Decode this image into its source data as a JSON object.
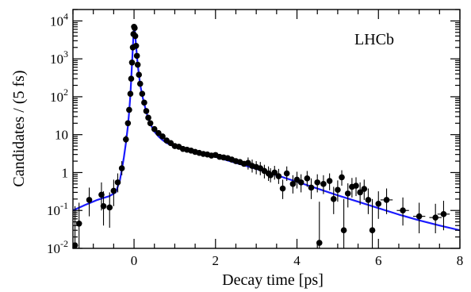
{
  "chart_data": {
    "type": "scatter",
    "xlabel": "Decay time [ps]",
    "ylabel": "Candidates / (5 fs)",
    "xlim": [
      -1.5,
      8
    ],
    "ylim": [
      0.01,
      20000
    ],
    "yscale": "log",
    "x_ticks": [
      0,
      2,
      4,
      6,
      8
    ],
    "y_ticks": [
      {
        "value": 0.01,
        "base": "10",
        "exp": "-2"
      },
      {
        "value": 0.1,
        "base": "10",
        "exp": "-1"
      },
      {
        "value": 1,
        "text": "1"
      },
      {
        "value": 10,
        "text": "10"
      },
      {
        "value": 100,
        "base": "10",
        "exp": "2"
      },
      {
        "value": 1000,
        "base": "10",
        "exp": "3"
      },
      {
        "value": 10000,
        "base": "10",
        "exp": "4"
      }
    ],
    "annotation": "LHCb",
    "grid": false,
    "colors": {
      "data": "#000000",
      "fit": "#1a1aff"
    },
    "series": [
      {
        "kind": "points",
        "points": [
          {
            "x": -1.45,
            "y": 0.012,
            "ylo": 0.01,
            "yhi": 0.13
          },
          {
            "x": -1.35,
            "y": 0.045,
            "ylo": 0.01,
            "yhi": 0.16
          },
          {
            "x": -1.1,
            "y": 0.19,
            "ylo": 0.07,
            "yhi": 0.4
          },
          {
            "x": -0.8,
            "y": 0.26,
            "ylo": 0.1,
            "yhi": 0.55
          },
          {
            "x": -0.75,
            "y": 0.13,
            "ylo": 0.04,
            "yhi": 0.32
          },
          {
            "x": -0.6,
            "y": 0.12,
            "ylo": 0.035,
            "yhi": 0.3
          },
          {
            "x": -0.5,
            "y": 0.33,
            "ylo": 0.13,
            "yhi": 0.65
          },
          {
            "x": -0.4,
            "y": 0.55,
            "ylo": 0.3,
            "yhi": 0.95
          },
          {
            "x": -0.3,
            "y": 1.3,
            "ylo": 0.85,
            "yhi": 2.0
          },
          {
            "x": -0.2,
            "y": 7.5,
            "ylo": 6.0,
            "yhi": 9.5
          },
          {
            "x": -0.15,
            "y": 20,
            "ylo": 17,
            "yhi": 24
          },
          {
            "x": -0.12,
            "y": 45,
            "ylo": 40,
            "yhi": 51
          },
          {
            "x": -0.09,
            "y": 120,
            "ylo": 111,
            "yhi": 130
          },
          {
            "x": -0.07,
            "y": 300
          },
          {
            "x": -0.05,
            "y": 800
          },
          {
            "x": -0.03,
            "y": 2000
          },
          {
            "x": -0.015,
            "y": 4500
          },
          {
            "x": 0.0,
            "y": 7000
          },
          {
            "x": 0.015,
            "y": 6500
          },
          {
            "x": 0.03,
            "y": 4000
          },
          {
            "x": 0.05,
            "y": 2200
          },
          {
            "x": 0.07,
            "y": 1200
          },
          {
            "x": 0.09,
            "y": 700
          },
          {
            "x": 0.12,
            "y": 380
          },
          {
            "x": 0.15,
            "y": 220
          },
          {
            "x": 0.2,
            "y": 120
          },
          {
            "x": 0.25,
            "y": 70
          },
          {
            "x": 0.3,
            "y": 42
          },
          {
            "x": 0.35,
            "y": 28
          },
          {
            "x": 0.4,
            "y": 20
          },
          {
            "x": 0.5,
            "y": 14
          },
          {
            "x": 0.6,
            "y": 11
          },
          {
            "x": 0.7,
            "y": 9
          },
          {
            "x": 0.8,
            "y": 7
          },
          {
            "x": 0.9,
            "y": 6
          },
          {
            "x": 1.0,
            "y": 5
          },
          {
            "x": 1.1,
            "y": 4.8
          },
          {
            "x": 1.2,
            "y": 4.2
          },
          {
            "x": 1.3,
            "y": 4.0
          },
          {
            "x": 1.4,
            "y": 3.8
          },
          {
            "x": 1.5,
            "y": 3.5
          },
          {
            "x": 1.6,
            "y": 3.3
          },
          {
            "x": 1.7,
            "y": 3.1
          },
          {
            "x": 1.8,
            "y": 3.0
          },
          {
            "x": 1.9,
            "y": 2.8
          },
          {
            "x": 2.0,
            "y": 2.9
          },
          {
            "x": 2.1,
            "y": 2.6
          },
          {
            "x": 2.2,
            "y": 2.5
          },
          {
            "x": 2.3,
            "y": 2.4
          },
          {
            "x": 2.4,
            "y": 2.2
          },
          {
            "x": 2.5,
            "y": 2.0
          },
          {
            "x": 2.6,
            "y": 1.9
          },
          {
            "x": 2.7,
            "y": 1.7
          },
          {
            "x": 2.8,
            "y": 1.8,
            "ylo": 1.2,
            "yhi": 2.5
          },
          {
            "x": 2.9,
            "y": 1.5,
            "ylo": 1.0,
            "yhi": 2.2
          },
          {
            "x": 3.0,
            "y": 1.4,
            "ylo": 0.9,
            "yhi": 2.0
          },
          {
            "x": 3.1,
            "y": 1.3,
            "ylo": 0.85,
            "yhi": 1.9
          },
          {
            "x": 3.2,
            "y": 1.1,
            "ylo": 0.7,
            "yhi": 1.6
          },
          {
            "x": 3.3,
            "y": 0.95,
            "ylo": 0.6,
            "yhi": 1.45
          },
          {
            "x": 3.35,
            "y": 0.85,
            "ylo": 0.55,
            "yhi": 1.3
          },
          {
            "x": 3.45,
            "y": 1.0,
            "ylo": 0.65,
            "yhi": 1.5
          },
          {
            "x": 3.55,
            "y": 0.8,
            "ylo": 0.5,
            "yhi": 1.25
          },
          {
            "x": 3.65,
            "y": 0.38,
            "ylo": 0.2,
            "yhi": 0.65
          },
          {
            "x": 3.75,
            "y": 0.95,
            "ylo": 0.6,
            "yhi": 1.45
          },
          {
            "x": 3.9,
            "y": 0.5,
            "ylo": 0.28,
            "yhi": 0.85
          },
          {
            "x": 4.0,
            "y": 0.65,
            "ylo": 0.38,
            "yhi": 1.05
          },
          {
            "x": 4.1,
            "y": 0.55,
            "ylo": 0.3,
            "yhi": 0.9
          },
          {
            "x": 4.25,
            "y": 0.7,
            "ylo": 0.42,
            "yhi": 1.1
          },
          {
            "x": 4.35,
            "y": 0.4,
            "ylo": 0.2,
            "yhi": 0.7
          },
          {
            "x": 4.5,
            "y": 0.55,
            "ylo": 0.3,
            "yhi": 0.9
          },
          {
            "x": 4.55,
            "y": 0.014,
            "ylo": 0.01,
            "yhi": 0.17
          },
          {
            "x": 4.65,
            "y": 0.5,
            "ylo": 0.27,
            "yhi": 0.85
          },
          {
            "x": 4.8,
            "y": 0.6,
            "ylo": 0.34,
            "yhi": 0.95
          },
          {
            "x": 4.9,
            "y": 0.2,
            "ylo": 0.08,
            "yhi": 0.42
          },
          {
            "x": 5.0,
            "y": 0.35,
            "ylo": 0.17,
            "yhi": 0.62
          },
          {
            "x": 5.1,
            "y": 0.75,
            "ylo": 0.45,
            "yhi": 1.15
          },
          {
            "x": 5.15,
            "y": 0.03,
            "ylo": 0.01,
            "yhi": 0.2
          },
          {
            "x": 5.25,
            "y": 0.28,
            "ylo": 0.12,
            "yhi": 0.52
          },
          {
            "x": 5.35,
            "y": 0.42,
            "ylo": 0.22,
            "yhi": 0.72
          },
          {
            "x": 5.45,
            "y": 0.45,
            "ylo": 0.24,
            "yhi": 0.75
          },
          {
            "x": 5.55,
            "y": 0.3,
            "ylo": 0.14,
            "yhi": 0.55
          },
          {
            "x": 5.65,
            "y": 0.37,
            "ylo": 0.19,
            "yhi": 0.65
          },
          {
            "x": 5.75,
            "y": 0.19,
            "ylo": 0.08,
            "yhi": 0.38
          },
          {
            "x": 5.85,
            "y": 0.03,
            "ylo": 0.01,
            "yhi": 0.2
          },
          {
            "x": 6.0,
            "y": 0.15,
            "ylo": 0.06,
            "yhi": 0.32
          },
          {
            "x": 6.2,
            "y": 0.19,
            "ylo": 0.08,
            "yhi": 0.38,
            "xerr": 0.15
          },
          {
            "x": 6.6,
            "y": 0.1,
            "ylo": 0.04,
            "yhi": 0.22,
            "xerr": 0.15
          },
          {
            "x": 7.0,
            "y": 0.07,
            "ylo": 0.025,
            "yhi": 0.16,
            "xerr": 0.15
          },
          {
            "x": 7.4,
            "y": 0.065,
            "ylo": 0.025,
            "yhi": 0.15,
            "xerr": 0.15
          },
          {
            "x": 7.6,
            "y": 0.08,
            "ylo": 0.03,
            "yhi": 0.18,
            "xerr": 0.15
          }
        ]
      },
      {
        "kind": "fit",
        "points": [
          {
            "x": -1.5,
            "y": 0.1
          },
          {
            "x": -1.2,
            "y": 0.14
          },
          {
            "x": -0.9,
            "y": 0.19
          },
          {
            "x": -0.6,
            "y": 0.24
          },
          {
            "x": -0.45,
            "y": 0.3
          },
          {
            "x": -0.35,
            "y": 0.6
          },
          {
            "x": -0.3,
            "y": 1.2
          },
          {
            "x": -0.25,
            "y": 2.5
          },
          {
            "x": -0.2,
            "y": 6
          },
          {
            "x": -0.15,
            "y": 17
          },
          {
            "x": -0.12,
            "y": 40
          },
          {
            "x": -0.09,
            "y": 110
          },
          {
            "x": -0.07,
            "y": 280
          },
          {
            "x": -0.05,
            "y": 750
          },
          {
            "x": -0.03,
            "y": 1900
          },
          {
            "x": -0.015,
            "y": 4300
          },
          {
            "x": 0.0,
            "y": 7200
          },
          {
            "x": 0.015,
            "y": 6500
          },
          {
            "x": 0.03,
            "y": 4000
          },
          {
            "x": 0.05,
            "y": 2200
          },
          {
            "x": 0.07,
            "y": 1200
          },
          {
            "x": 0.09,
            "y": 700
          },
          {
            "x": 0.12,
            "y": 380
          },
          {
            "x": 0.15,
            "y": 210
          },
          {
            "x": 0.2,
            "y": 110
          },
          {
            "x": 0.25,
            "y": 65
          },
          {
            "x": 0.3,
            "y": 40
          },
          {
            "x": 0.35,
            "y": 27
          },
          {
            "x": 0.4,
            "y": 19
          },
          {
            "x": 0.5,
            "y": 12
          },
          {
            "x": 0.6,
            "y": 9
          },
          {
            "x": 0.7,
            "y": 7.2
          },
          {
            "x": 0.8,
            "y": 6
          },
          {
            "x": 1.0,
            "y": 4.8
          },
          {
            "x": 1.5,
            "y": 3.5
          },
          {
            "x": 2.0,
            "y": 2.6
          },
          {
            "x": 2.5,
            "y": 1.8
          },
          {
            "x": 3.0,
            "y": 1.25
          },
          {
            "x": 3.5,
            "y": 0.85
          },
          {
            "x": 4.0,
            "y": 0.57
          },
          {
            "x": 4.5,
            "y": 0.38
          },
          {
            "x": 5.0,
            "y": 0.25
          },
          {
            "x": 5.5,
            "y": 0.17
          },
          {
            "x": 6.0,
            "y": 0.115
          },
          {
            "x": 6.5,
            "y": 0.078
          },
          {
            "x": 7.0,
            "y": 0.055
          },
          {
            "x": 7.5,
            "y": 0.04
          },
          {
            "x": 8.0,
            "y": 0.03
          }
        ]
      }
    ]
  }
}
